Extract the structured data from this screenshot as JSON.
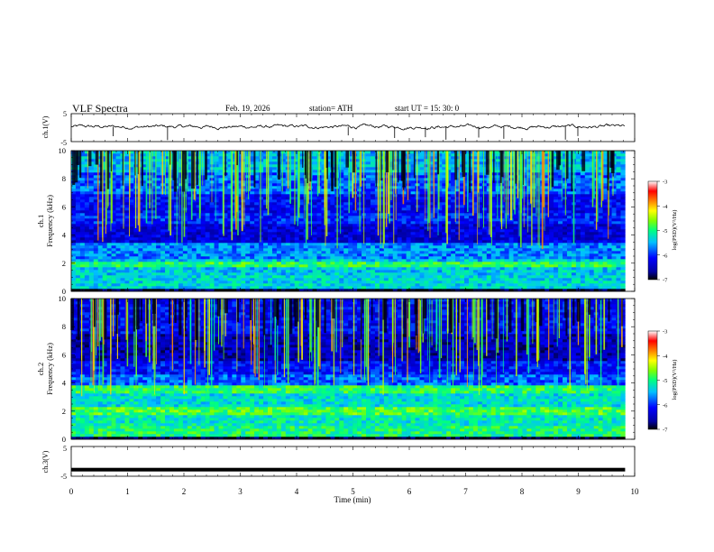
{
  "header": {
    "title": "VLF  Spectra",
    "date": "Feb. 19, 2026",
    "station": "station= ATH",
    "start_ut": "start  UT  =    15: 30: 0"
  },
  "chart_data": [
    {
      "id": "ch1-waveform",
      "type": "line",
      "ylabel": "ch.1(V)",
      "ylim": [
        -5,
        5
      ],
      "yticks": [
        "5",
        "-5"
      ],
      "xlim": [
        0,
        10
      ],
      "description_level": 0.3
    },
    {
      "id": "ch1-spectrogram",
      "type": "heatmap",
      "ylabel": "ch.1\nFrequency  (kHz)",
      "ylabel_line1": "ch.1",
      "ylabel_line2": "Frequency  (kHz)",
      "ylim": [
        0,
        10
      ],
      "yticks": [
        "0",
        "2",
        "4",
        "6",
        "8",
        "10"
      ],
      "xlim": [
        0,
        10
      ],
      "data_end_min": 9.83,
      "colorbar": {
        "label": "log(PSD)(V²/Hz)",
        "range": [
          -7,
          -3
        ],
        "ticks": [
          "-3",
          "-4",
          "-5",
          "-6",
          "-7"
        ]
      }
    },
    {
      "id": "ch2-spectrogram",
      "type": "heatmap",
      "ylabel_line1": "ch.2",
      "ylabel_line2": "Frequency  (kHz)",
      "ylim": [
        0,
        10
      ],
      "yticks": [
        "0",
        "2",
        "4",
        "6",
        "8",
        "10"
      ],
      "xlim": [
        0,
        10
      ],
      "data_end_min": 9.83,
      "colorbar": {
        "label": "log(PSD)(V²/Hz)",
        "range": [
          -7,
          -3
        ],
        "ticks": [
          "-3",
          "-4",
          "-5",
          "-6",
          "-7"
        ]
      }
    },
    {
      "id": "ch3-waveform",
      "type": "line",
      "ylabel": "ch.3(V)",
      "ylim": [
        -5,
        5
      ],
      "yticks": [
        "5",
        "-5"
      ],
      "xlim": [
        0,
        10
      ],
      "level": -2.8
    }
  ],
  "x_axis": {
    "label": "Time  (min)",
    "ticks": [
      "0",
      "1",
      "2",
      "3",
      "4",
      "5",
      "6",
      "7",
      "8",
      "9",
      "10"
    ]
  },
  "colors": {
    "jet": [
      "#000080",
      "#0000ff",
      "#0080ff",
      "#00ffff",
      "#80ff80",
      "#ffff00",
      "#ff8000",
      "#ff0000",
      "#800000",
      "#ffffff"
    ]
  }
}
